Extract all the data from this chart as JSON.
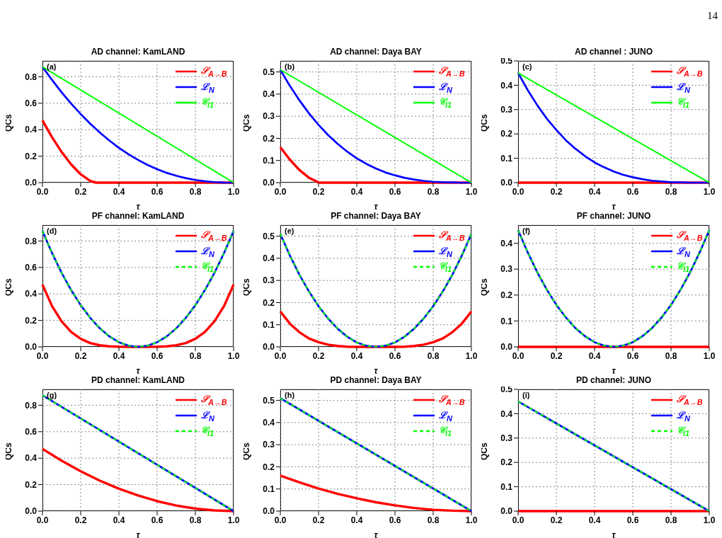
{
  "chart_data": [
    {
      "type": "line",
      "title": "AD channel: KamLAND",
      "xlabel": "τ",
      "ylabel": "QCs",
      "annotations": [
        "(a)"
      ],
      "xlim": [
        0,
        1
      ],
      "ylim": [
        0,
        0.92
      ],
      "xticks": [
        {
          "value": 0,
          "label": "0.0"
        },
        {
          "value": 0.2,
          "label": "0.2"
        },
        {
          "value": 0.4,
          "label": "0.4"
        },
        {
          "value": 0.6,
          "label": "0.6"
        },
        {
          "value": 0.8,
          "label": "0.8"
        },
        {
          "value": 1,
          "label": "1.0"
        }
      ],
      "yticks": [
        {
          "value": 0,
          "label": "0.0"
        },
        {
          "value": 0.2,
          "label": "0.2"
        },
        {
          "value": 0.4,
          "label": "0.4"
        },
        {
          "value": 0.6,
          "label": "0.6"
        },
        {
          "value": 0.8,
          "label": "0.8"
        }
      ],
      "grid": true,
      "legend": "top right",
      "line_style": "solid",
      "series": [
        {
          "name": "𝒮$_{A→B}$",
          "color": "#ff0000",
          "x": [
            0,
            0.05,
            0.1,
            0.15,
            0.2,
            0.25,
            0.28,
            1
          ],
          "values": [
            0.47,
            0.343,
            0.232,
            0.138,
            0.063,
            0.013,
            0,
            0
          ]
        },
        {
          "name": "ℒ$_{N}$",
          "color": "#0000ff",
          "x": [
            0,
            0.05,
            0.1,
            0.15,
            0.2,
            0.25,
            0.3,
            0.35,
            0.4,
            0.45,
            0.5,
            0.55,
            0.6,
            0.65,
            0.7,
            0.75,
            0.8,
            0.85,
            0.9,
            0.95,
            1
          ],
          "values": [
            0.875,
            0.776,
            0.683,
            0.597,
            0.518,
            0.445,
            0.378,
            0.318,
            0.263,
            0.215,
            0.172,
            0.134,
            0.102,
            0.074,
            0.052,
            0.034,
            0.02,
            0.01,
            0.004,
            0.001,
            0
          ]
        },
        {
          "name": "𝒞$_{l1}$",
          "color": "#00ff00",
          "x": [
            0,
            1
          ],
          "values": [
            0.875,
            0
          ]
        }
      ]
    },
    {
      "type": "line",
      "title": "AD channel: Daya BAY",
      "xlabel": "τ",
      "ylabel": "QCs",
      "annotations": [
        "(b)"
      ],
      "xlim": [
        0,
        1
      ],
      "ylim": [
        0,
        0.55
      ],
      "xticks": [
        {
          "value": 0,
          "label": "0.0"
        },
        {
          "value": 0.2,
          "label": "0.2"
        },
        {
          "value": 0.4,
          "label": "0.4"
        },
        {
          "value": 0.6,
          "label": "0.6"
        },
        {
          "value": 0.8,
          "label": "0.8"
        },
        {
          "value": 1,
          "label": "1.0"
        }
      ],
      "yticks": [
        {
          "value": 0,
          "label": "0.0"
        },
        0.1,
        0.2,
        0.3,
        0.4,
        0.5
      ],
      "grid": true,
      "legend": "top right",
      "line_style": "solid",
      "series": [
        {
          "name": "𝒮$_{A→B}$",
          "color": "#ff0000",
          "x": [
            0,
            0.05,
            0.1,
            0.15,
            0.2,
            0.21,
            1
          ],
          "values": [
            0.16,
            0.104,
            0.057,
            0.022,
            0.001,
            0,
            0
          ]
        },
        {
          "name": "ℒ$_{N}$",
          "color": "#0000ff",
          "x": [
            0,
            0.05,
            0.1,
            0.15,
            0.2,
            0.25,
            0.3,
            0.35,
            0.4,
            0.45,
            0.5,
            0.55,
            0.6,
            0.65,
            0.7,
            0.75,
            0.8,
            0.85,
            0.9,
            0.95,
            1
          ],
          "values": [
            0.51,
            0.437,
            0.372,
            0.313,
            0.261,
            0.215,
            0.175,
            0.14,
            0.11,
            0.085,
            0.064,
            0.046,
            0.033,
            0.022,
            0.014,
            0.008,
            0.004,
            0.002,
            0.001,
            0,
            0
          ]
        },
        {
          "name": "𝒞$_{l1}$",
          "color": "#00ff00",
          "x": [
            0,
            1
          ],
          "values": [
            0.51,
            0
          ]
        }
      ]
    },
    {
      "type": "line",
      "title": "AD channel : JUNO",
      "xlabel": "τ",
      "ylabel": "QCs",
      "annotations": [
        "(c)",
        "14"
      ],
      "xlim": [
        0,
        1
      ],
      "ylim": [
        0,
        0.5
      ],
      "xticks": [
        {
          "value": 0,
          "label": "0.0"
        },
        {
          "value": 0.2,
          "label": "0.2"
        },
        {
          "value": 0.4,
          "label": "0.4"
        },
        {
          "value": 0.6,
          "label": "0.6"
        },
        {
          "value": 0.8,
          "label": "0.8"
        },
        {
          "value": 1,
          "label": "1.0"
        }
      ],
      "yticks": [
        {
          "value": 0,
          "label": "0.0"
        },
        0.1,
        0.2,
        0.3,
        0.4,
        0.5
      ],
      "grid": true,
      "legend": "top right",
      "line_style": "solid",
      "series": [
        {
          "name": "𝒮$_{A→B}$",
          "color": "#ff0000",
          "x": [
            0,
            1
          ],
          "values": [
            0,
            0
          ]
        },
        {
          "name": "ℒ$_{N}$",
          "color": "#0000ff",
          "x": [
            0,
            0.05,
            0.1,
            0.15,
            0.2,
            0.25,
            0.3,
            0.35,
            0.4,
            0.45,
            0.5,
            0.55,
            0.6,
            0.65,
            0.7,
            0.75,
            0.8,
            0.85,
            0.9,
            0.95,
            1
          ],
          "values": [
            0.45,
            0.38,
            0.318,
            0.263,
            0.216,
            0.174,
            0.139,
            0.109,
            0.083,
            0.063,
            0.046,
            0.032,
            0.022,
            0.014,
            0.008,
            0.005,
            0.002,
            0.001,
            0,
            0,
            0
          ]
        },
        {
          "name": "𝒞$_{l1}$",
          "color": "#00ff00",
          "x": [
            0,
            1
          ],
          "values": [
            0.45,
            0
          ]
        }
      ]
    },
    {
      "type": "line",
      "title": "PF channel: KamLAND",
      "xlabel": "τ",
      "ylabel": "QCs",
      "annotations": [
        "(d)"
      ],
      "xlim": [
        0,
        1
      ],
      "ylim": [
        0,
        0.92
      ],
      "xticks": [
        {
          "value": 0,
          "label": "0.0"
        },
        {
          "value": 0.2,
          "label": "0.2"
        },
        {
          "value": 0.4,
          "label": "0.4"
        },
        {
          "value": 0.6,
          "label": "0.6"
        },
        {
          "value": 0.8,
          "label": "0.8"
        },
        {
          "value": 1,
          "label": "1.0"
        }
      ],
      "yticks": [
        {
          "value": 0,
          "label": "0.0"
        },
        {
          "value": 0.2,
          "label": "0.2"
        },
        {
          "value": 0.4,
          "label": "0.4"
        },
        {
          "value": 0.6,
          "label": "0.6"
        },
        {
          "value": 0.8,
          "label": "0.8"
        }
      ],
      "grid": true,
      "legend": "top right",
      "line_style": "solid",
      "series": [
        {
          "name": "𝒮$_{A→B}$",
          "color": "#ff0000",
          "x": [
            0,
            0.05,
            0.1,
            0.15,
            0.2,
            0.25,
            0.3,
            0.35,
            0.4,
            0.45,
            0.5,
            0.55,
            0.6,
            0.65,
            0.7,
            0.75,
            0.8,
            0.85,
            0.9,
            0.95,
            1
          ],
          "values": [
            0.47,
            0.308,
            0.193,
            0.113,
            0.061,
            0.029,
            0.012,
            0.004,
            0.001,
            0,
            0,
            0,
            0.001,
            0.004,
            0.012,
            0.029,
            0.061,
            0.113,
            0.193,
            0.308,
            0.47
          ]
        },
        {
          "name": "ℒ$_{N}$",
          "color": "#0000ff",
          "x": [
            0,
            0.05,
            0.1,
            0.15,
            0.2,
            0.25,
            0.3,
            0.35,
            0.4,
            0.45,
            0.5,
            0.55,
            0.6,
            0.65,
            0.7,
            0.75,
            0.8,
            0.85,
            0.9,
            0.95,
            1
          ],
          "values": [
            0.875,
            0.709,
            0.56,
            0.429,
            0.315,
            0.219,
            0.14,
            0.079,
            0.035,
            0.009,
            0,
            0.009,
            0.035,
            0.079,
            0.14,
            0.219,
            0.315,
            0.429,
            0.56,
            0.709,
            0.875
          ]
        },
        {
          "name": "𝒞$_{l1}$",
          "color": "#00ff00",
          "line_style": "dashed",
          "x": [
            0,
            0.05,
            0.1,
            0.15,
            0.2,
            0.25,
            0.3,
            0.35,
            0.4,
            0.45,
            0.5,
            0.55,
            0.6,
            0.65,
            0.7,
            0.75,
            0.8,
            0.85,
            0.9,
            0.95,
            1
          ],
          "values": [
            0.875,
            0.709,
            0.56,
            0.429,
            0.315,
            0.219,
            0.14,
            0.079,
            0.035,
            0.009,
            0,
            0.009,
            0.035,
            0.079,
            0.14,
            0.219,
            0.315,
            0.429,
            0.56,
            0.709,
            0.875
          ]
        }
      ]
    },
    {
      "type": "line",
      "title": "PF channel: Daya BAY",
      "xlabel": "τ",
      "ylabel": "QCs",
      "annotations": [
        "(e)"
      ],
      "xlim": [
        0,
        1
      ],
      "ylim": [
        0,
        0.55
      ],
      "xticks": [
        {
          "value": 0,
          "label": "0.0"
        },
        {
          "value": 0.2,
          "label": "0.2"
        },
        {
          "value": 0.4,
          "label": "0.4"
        },
        {
          "value": 0.6,
          "label": "0.6"
        },
        {
          "value": 0.8,
          "label": "0.8"
        },
        {
          "value": 1,
          "label": "1.0"
        }
      ],
      "yticks": [
        {
          "value": 0,
          "label": "0.0"
        },
        0.1,
        0.2,
        0.3,
        0.4,
        0.5
      ],
      "grid": true,
      "legend": "top right",
      "line_style": "solid",
      "series": [
        {
          "name": "𝒮$_{A→B}$",
          "color": "#ff0000",
          "x": [
            0,
            0.05,
            0.1,
            0.15,
            0.2,
            0.25,
            0.3,
            0.35,
            0.4,
            0.45,
            0.5,
            0.55,
            0.6,
            0.65,
            0.7,
            0.75,
            0.8,
            0.85,
            0.9,
            0.95,
            1
          ],
          "values": [
            0.16,
            0.105,
            0.066,
            0.038,
            0.021,
            0.01,
            0.004,
            0.001,
            0,
            0,
            0,
            0,
            0,
            0.001,
            0.004,
            0.01,
            0.021,
            0.038,
            0.066,
            0.105,
            0.16
          ]
        },
        {
          "name": "ℒ$_{N}$",
          "color": "#0000ff",
          "x": [
            0,
            0.05,
            0.1,
            0.15,
            0.2,
            0.25,
            0.3,
            0.35,
            0.4,
            0.45,
            0.5,
            0.55,
            0.6,
            0.65,
            0.7,
            0.75,
            0.8,
            0.85,
            0.9,
            0.95,
            1
          ],
          "values": [
            0.51,
            0.413,
            0.326,
            0.25,
            0.184,
            0.128,
            0.082,
            0.046,
            0.02,
            0.005,
            0,
            0.005,
            0.02,
            0.046,
            0.082,
            0.128,
            0.184,
            0.25,
            0.326,
            0.413,
            0.51
          ]
        },
        {
          "name": "𝒞$_{l1}$",
          "color": "#00ff00",
          "line_style": "dashed",
          "x": [
            0,
            0.05,
            0.1,
            0.15,
            0.2,
            0.25,
            0.3,
            0.35,
            0.4,
            0.45,
            0.5,
            0.55,
            0.6,
            0.65,
            0.7,
            0.75,
            0.8,
            0.85,
            0.9,
            0.95,
            1
          ],
          "values": [
            0.51,
            0.413,
            0.326,
            0.25,
            0.184,
            0.128,
            0.082,
            0.046,
            0.02,
            0.005,
            0,
            0.005,
            0.02,
            0.046,
            0.082,
            0.128,
            0.184,
            0.25,
            0.326,
            0.413,
            0.51
          ]
        }
      ]
    },
    {
      "type": "line",
      "title": "PF channel: JUNO",
      "xlabel": "τ",
      "ylabel": "QCs",
      "annotations": [
        "(f)"
      ],
      "xlim": [
        0,
        1
      ],
      "ylim": [
        0,
        0.47
      ],
      "xticks": [
        {
          "value": 0,
          "label": "0.0"
        },
        {
          "value": 0.2,
          "label": "0.2"
        },
        {
          "value": 0.4,
          "label": "0.4"
        },
        {
          "value": 0.6,
          "label": "0.6"
        },
        {
          "value": 0.8,
          "label": "0.8"
        },
        {
          "value": 1,
          "label": "1.0"
        }
      ],
      "yticks": [
        {
          "value": 0,
          "label": "0.0"
        },
        0.1,
        0.2,
        0.3,
        0.4
      ],
      "grid": true,
      "legend": "top right",
      "line_style": "solid",
      "series": [
        {
          "name": "𝒮$_{A→B}$",
          "color": "#ff0000",
          "x": [
            0,
            1
          ],
          "values": [
            0,
            0
          ]
        },
        {
          "name": "ℒ$_{N}$",
          "color": "#0000ff",
          "x": [
            0,
            0.05,
            0.1,
            0.15,
            0.2,
            0.25,
            0.3,
            0.35,
            0.4,
            0.45,
            0.5,
            0.55,
            0.6,
            0.65,
            0.7,
            0.75,
            0.8,
            0.85,
            0.9,
            0.95,
            1
          ],
          "values": [
            0.45,
            0.365,
            0.288,
            0.221,
            0.162,
            0.113,
            0.072,
            0.041,
            0.018,
            0.005,
            0,
            0.005,
            0.018,
            0.041,
            0.072,
            0.113,
            0.162,
            0.221,
            0.288,
            0.365,
            0.45
          ]
        },
        {
          "name": "𝒞$_{l1}$",
          "color": "#00ff00",
          "line_style": "dashed",
          "x": [
            0,
            0.05,
            0.1,
            0.15,
            0.2,
            0.25,
            0.3,
            0.35,
            0.4,
            0.45,
            0.5,
            0.55,
            0.6,
            0.65,
            0.7,
            0.75,
            0.8,
            0.85,
            0.9,
            0.95,
            1
          ],
          "values": [
            0.45,
            0.365,
            0.288,
            0.221,
            0.162,
            0.113,
            0.072,
            0.041,
            0.018,
            0.005,
            0,
            0.005,
            0.018,
            0.041,
            0.072,
            0.113,
            0.162,
            0.221,
            0.288,
            0.365,
            0.45
          ]
        }
      ]
    },
    {
      "type": "line",
      "title": "PD channel: KamLAND",
      "xlabel": "τ",
      "ylabel": "QCs",
      "annotations": [
        "(g)"
      ],
      "xlim": [
        0,
        1
      ],
      "ylim": [
        0,
        0.92
      ],
      "xticks": [
        {
          "value": 0,
          "label": "0.0"
        },
        {
          "value": 0.2,
          "label": "0.2"
        },
        {
          "value": 0.4,
          "label": "0.4"
        },
        {
          "value": 0.6,
          "label": "0.6"
        },
        {
          "value": 0.8,
          "label": "0.8"
        },
        {
          "value": 1,
          "label": "1.0"
        }
      ],
      "yticks": [
        {
          "value": 0,
          "label": "0.0"
        },
        {
          "value": 0.2,
          "label": "0.2"
        },
        {
          "value": 0.4,
          "label": "0.4"
        },
        {
          "value": 0.6,
          "label": "0.6"
        },
        {
          "value": 0.8,
          "label": "0.8"
        }
      ],
      "grid": true,
      "legend": "top right",
      "line_style": "solid",
      "series": [
        {
          "name": "𝒮$_{A→B}$",
          "color": "#ff0000",
          "x": [
            0,
            0.1,
            0.2,
            0.3,
            0.4,
            0.5,
            0.6,
            0.7,
            0.8,
            0.9,
            1
          ],
          "values": [
            0.47,
            0.381,
            0.301,
            0.23,
            0.169,
            0.118,
            0.075,
            0.042,
            0.019,
            0.005,
            0
          ]
        },
        {
          "name": "ℒ$_{N}$",
          "color": "#0000ff",
          "x": [
            0,
            1
          ],
          "values": [
            0.875,
            0
          ]
        },
        {
          "name": "𝒞$_{l1}$",
          "color": "#00ff00",
          "line_style": "dashed",
          "x": [
            0,
            1
          ],
          "values": [
            0.875,
            0
          ]
        }
      ]
    },
    {
      "type": "line",
      "title": "PD channel: Daya BAY",
      "xlabel": "τ",
      "ylabel": "QCs",
      "annotations": [
        "(h)"
      ],
      "xlim": [
        0,
        1
      ],
      "ylim": [
        0,
        0.55
      ],
      "xticks": [
        {
          "value": 0,
          "label": "0.0"
        },
        {
          "value": 0.2,
          "label": "0.2"
        },
        {
          "value": 0.4,
          "label": "0.4"
        },
        {
          "value": 0.6,
          "label": "0.6"
        },
        {
          "value": 0.8,
          "label": "0.8"
        },
        {
          "value": 1,
          "label": "1.0"
        }
      ],
      "yticks": [
        {
          "value": 0,
          "label": "0.0"
        },
        0.1,
        0.2,
        0.3,
        0.4,
        0.5
      ],
      "grid": true,
      "legend": "top right",
      "line_style": "solid",
      "series": [
        {
          "name": "𝒮$_{A→B}$",
          "color": "#ff0000",
          "x": [
            0,
            0.1,
            0.2,
            0.3,
            0.4,
            0.5,
            0.6,
            0.7,
            0.8,
            0.9,
            1
          ],
          "values": [
            0.16,
            0.13,
            0.102,
            0.078,
            0.058,
            0.04,
            0.026,
            0.014,
            0.006,
            0.002,
            0
          ]
        },
        {
          "name": "ℒ$_{N}$",
          "color": "#0000ff",
          "x": [
            0,
            1
          ],
          "values": [
            0.51,
            0
          ]
        },
        {
          "name": "𝒞$_{l1}$",
          "color": "#00ff00",
          "line_style": "dashed",
          "x": [
            0,
            1
          ],
          "values": [
            0.51,
            0
          ]
        }
      ]
    },
    {
      "type": "line",
      "title": "PD channel: JUNO",
      "xlabel": "τ",
      "ylabel": "QCs",
      "annotations": [
        "(i)"
      ],
      "xlim": [
        0,
        1
      ],
      "ylim": [
        0,
        0.5
      ],
      "xticks": [
        {
          "value": 0,
          "label": "0.0"
        },
        {
          "value": 0.2,
          "label": "0.2"
        },
        {
          "value": 0.4,
          "label": "0.4"
        },
        {
          "value": 0.6,
          "label": "0.6"
        },
        {
          "value": 0.8,
          "label": "0.8"
        },
        {
          "value": 1,
          "label": "1.0"
        }
      ],
      "yticks": [
        {
          "value": 0,
          "label": "0.0"
        },
        0.1,
        0.2,
        0.3,
        0.4,
        0.5
      ],
      "grid": true,
      "legend": "top right",
      "line_style": "solid",
      "series": [
        {
          "name": "𝒮$_{A→B}$",
          "color": "#ff0000",
          "x": [
            0,
            1
          ],
          "values": [
            0,
            0
          ]
        },
        {
          "name": "ℒ$_{N}$",
          "color": "#0000ff",
          "x": [
            0,
            1
          ],
          "values": [
            0.45,
            0
          ]
        },
        {
          "name": "𝒞$_{l1}$",
          "color": "#00ff00",
          "line_style": "dashed",
          "x": [
            0,
            1
          ],
          "values": [
            0.45,
            0
          ]
        }
      ]
    }
  ]
}
